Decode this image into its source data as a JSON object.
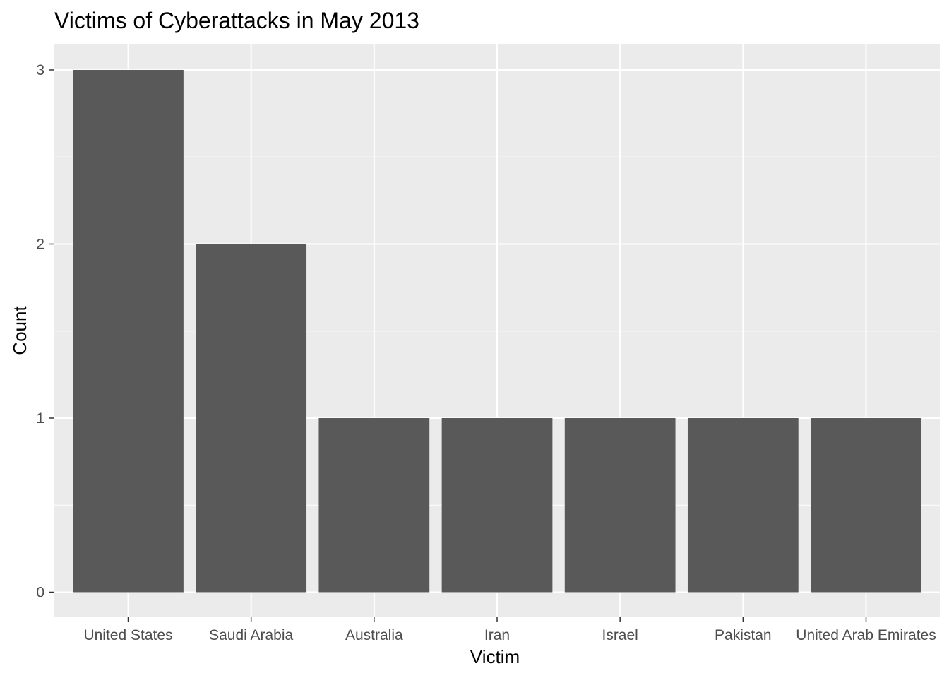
{
  "chart_data": {
    "type": "bar",
    "title": "Victims of Cyberattacks in May 2013",
    "xlabel": "Victim",
    "ylabel": "Count",
    "categories": [
      "United States",
      "Saudi Arabia",
      "Australia",
      "Iran",
      "Israel",
      "Pakistan",
      "United Arab Emirates"
    ],
    "values": [
      3,
      2,
      1,
      1,
      1,
      1,
      1
    ],
    "ylim": [
      -0.14,
      3.15
    ],
    "yticks": [
      0,
      1,
      2,
      3
    ],
    "grid": true,
    "legend": "none",
    "colors": {
      "panel": "#ebebeb",
      "grid": "#ffffff",
      "bar": "#595959",
      "tick": "#333333"
    }
  }
}
